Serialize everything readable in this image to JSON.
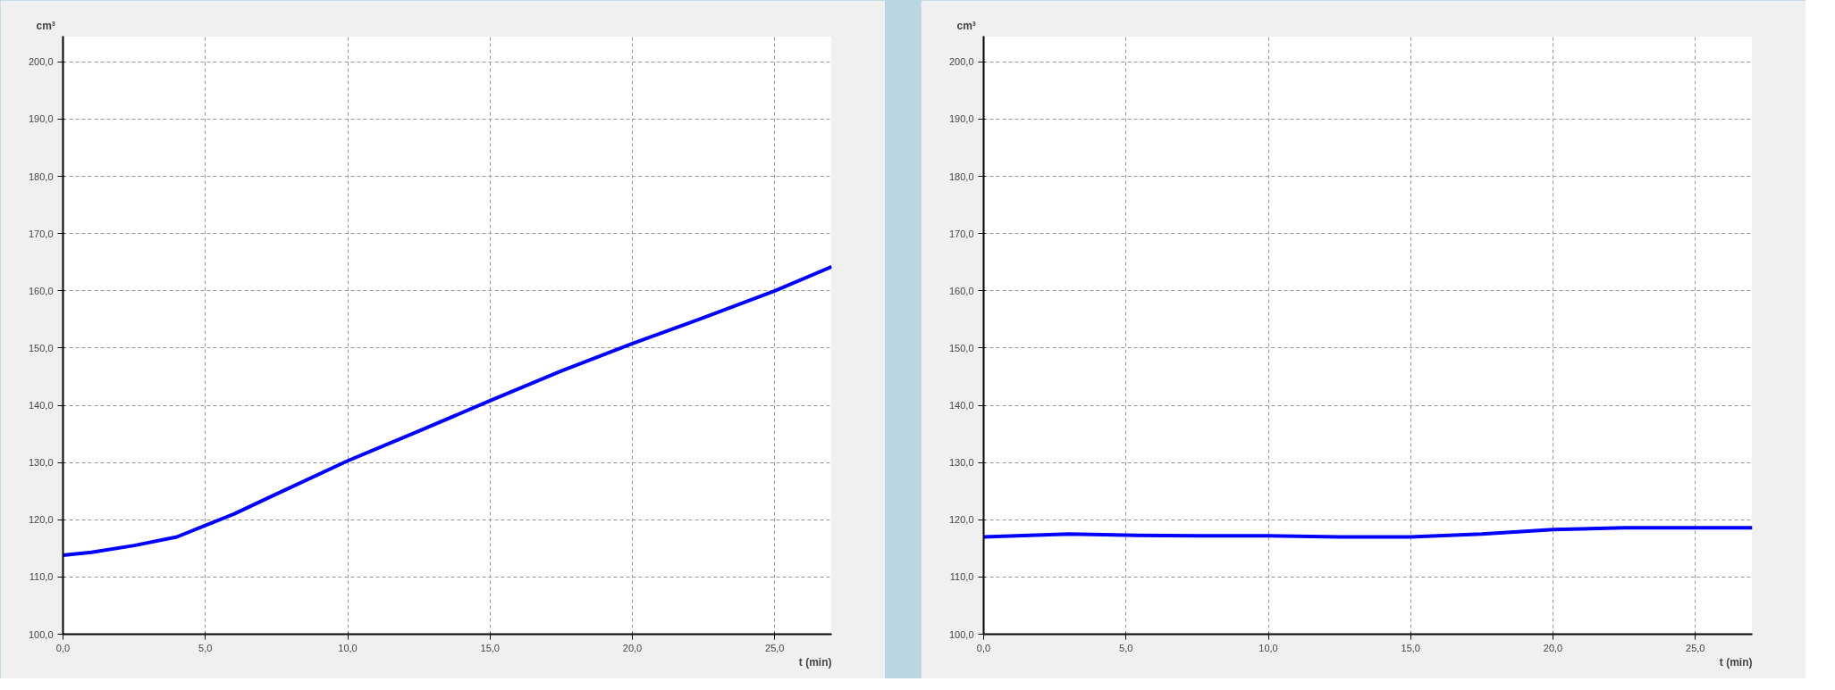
{
  "chart_data": [
    {
      "type": "line",
      "xlabel": "t (min)",
      "ylabel": "cm³",
      "x": [
        0,
        1,
        2.5,
        4,
        5,
        6,
        7.5,
        10,
        12.5,
        15,
        17.5,
        20,
        22.5,
        25,
        27
      ],
      "series": [
        {
          "color": "#0000ff",
          "values": [
            113.8,
            114.3,
            115.5,
            117,
            119,
            121,
            124.5,
            130.3,
            135.5,
            140.8,
            146,
            150.8,
            155.3,
            160,
            164.2
          ]
        }
      ],
      "xlim": [
        0,
        27
      ],
      "ylim": [
        100,
        204.5
      ],
      "xticks": [
        {
          "value": 0,
          "label": "0,0"
        },
        {
          "value": 5,
          "label": "5,0"
        },
        {
          "value": 10,
          "label": "10,0"
        },
        {
          "value": 15,
          "label": "15,0"
        },
        {
          "value": 20,
          "label": "20,0"
        },
        {
          "value": 25,
          "label": "25,0"
        }
      ],
      "yticks": [
        {
          "value": 100,
          "label": "100,0"
        },
        {
          "value": 110,
          "label": "110,0"
        },
        {
          "value": 120,
          "label": "120,0"
        },
        {
          "value": 130,
          "label": "130,0"
        },
        {
          "value": 140,
          "label": "140,0"
        },
        {
          "value": 150,
          "label": "150,0"
        },
        {
          "value": 160,
          "label": "160,0"
        },
        {
          "value": 170,
          "label": "170,0"
        },
        {
          "value": 180,
          "label": "180,0"
        },
        {
          "value": 190,
          "label": "190,0"
        },
        {
          "value": 200,
          "label": "200,0"
        }
      ],
      "grid": true,
      "line_style": "solid",
      "marker": "none"
    },
    {
      "type": "line",
      "xlabel": "t (min)",
      "ylabel": "cm³",
      "x": [
        0,
        3,
        5,
        7.5,
        10,
        12.5,
        15,
        17.5,
        20,
        22.5,
        27
      ],
      "series": [
        {
          "color": "#0000ff",
          "values": [
            117,
            117.5,
            117.3,
            117.2,
            117.2,
            117,
            117,
            117.5,
            118.3,
            118.6,
            118.6
          ]
        }
      ],
      "xlim": [
        0,
        27
      ],
      "ylim": [
        100,
        204.5
      ],
      "xticks": [
        {
          "value": 0,
          "label": "0,0"
        },
        {
          "value": 5,
          "label": "5,0"
        },
        {
          "value": 10,
          "label": "10,0"
        },
        {
          "value": 15,
          "label": "15,0"
        },
        {
          "value": 20,
          "label": "20,0"
        },
        {
          "value": 25,
          "label": "25,0"
        }
      ],
      "yticks": [
        {
          "value": 100,
          "label": "100,0"
        },
        {
          "value": 110,
          "label": "110,0"
        },
        {
          "value": 120,
          "label": "120,0"
        },
        {
          "value": 130,
          "label": "130,0"
        },
        {
          "value": 140,
          "label": "140,0"
        },
        {
          "value": 150,
          "label": "150,0"
        },
        {
          "value": 160,
          "label": "160,0"
        },
        {
          "value": 170,
          "label": "170,0"
        },
        {
          "value": 180,
          "label": "180,0"
        },
        {
          "value": 190,
          "label": "190,0"
        },
        {
          "value": 200,
          "label": "200,0"
        }
      ],
      "grid": true,
      "line_style": "solid",
      "marker": "none"
    }
  ]
}
